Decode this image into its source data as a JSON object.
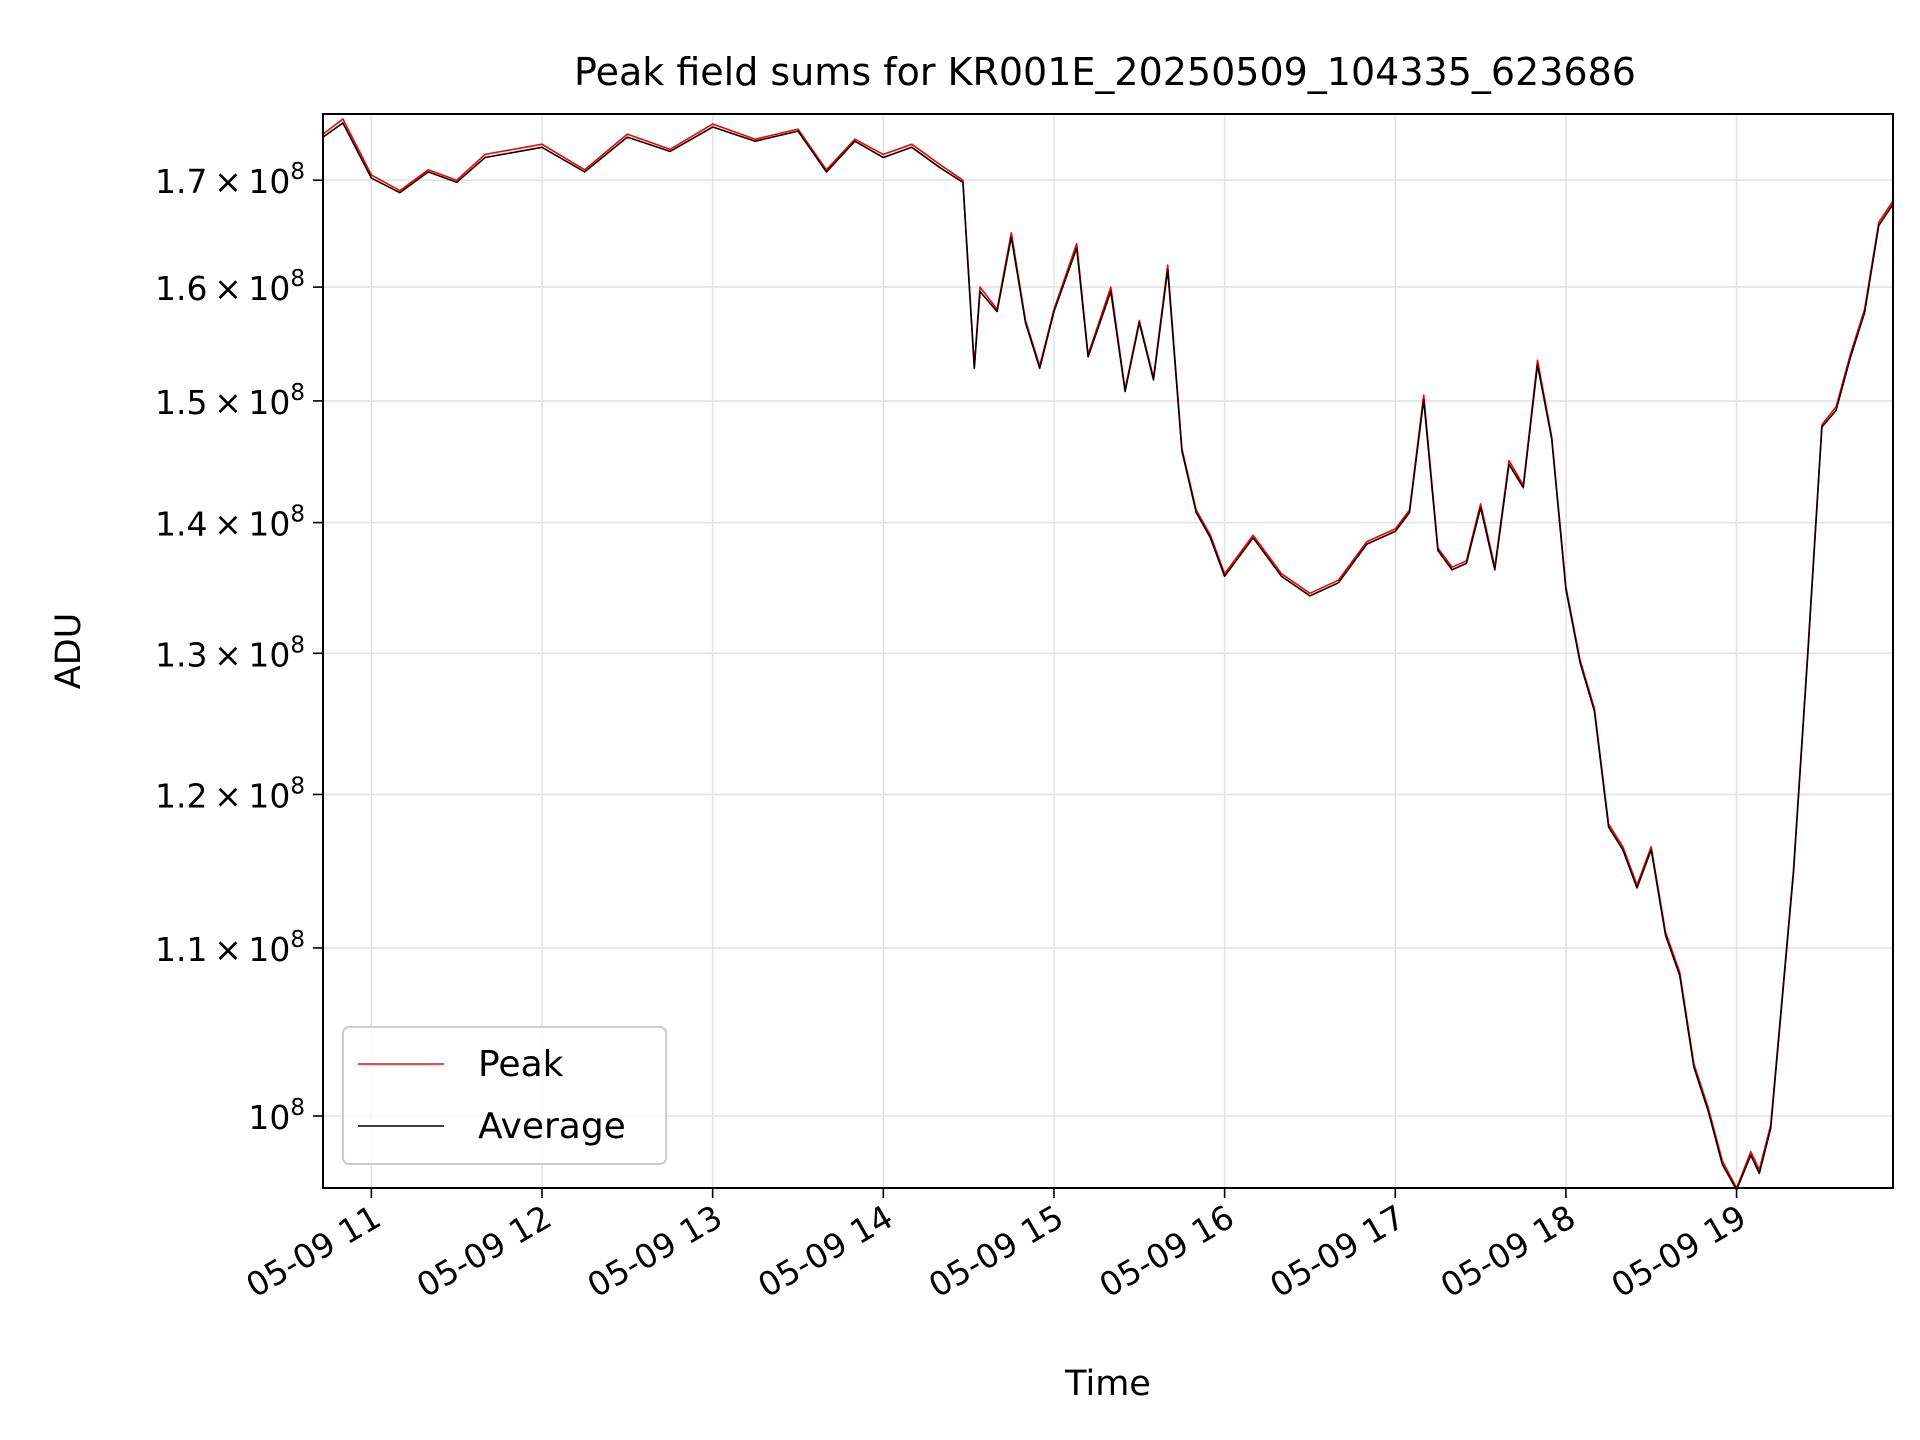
{
  "chart_data": {
    "type": "line",
    "title": "Peak field sums for KR001E_20250509_104335_623686",
    "xlabel": "Time",
    "ylabel": "ADU",
    "y_scale": "log",
    "ylim": [
      96000000,
      176500000
    ],
    "xlim": [
      "05-09 10:43",
      "05-09 19:55"
    ],
    "grid": true,
    "legend_position": "lower-left",
    "x_ticks": [
      "05-09 11",
      "05-09 12",
      "05-09 13",
      "05-09 14",
      "05-09 15",
      "05-09 16",
      "05-09 17",
      "05-09 18",
      "05-09 19"
    ],
    "y_ticks": [
      {
        "value": 100000000,
        "mantissa": "",
        "exponent": "8"
      },
      {
        "value": 110000000,
        "mantissa": "1.1",
        "exponent": "8"
      },
      {
        "value": 120000000,
        "mantissa": "1.2",
        "exponent": "8"
      },
      {
        "value": 130000000,
        "mantissa": "1.3",
        "exponent": "8"
      },
      {
        "value": 140000000,
        "mantissa": "1.4",
        "exponent": "8"
      },
      {
        "value": 150000000,
        "mantissa": "1.5",
        "exponent": "8"
      },
      {
        "value": 160000000,
        "mantissa": "1.6",
        "exponent": "8"
      },
      {
        "value": 170000000,
        "mantissa": "1.7",
        "exponent": "8"
      }
    ],
    "y_tick_base": "10",
    "y_tick_times": "×",
    "x": [
      "05-09 10:43",
      "05-09 10:50",
      "05-09 11:00",
      "05-09 11:10",
      "05-09 11:20",
      "05-09 11:30",
      "05-09 11:40",
      "05-09 12:00",
      "05-09 12:15",
      "05-09 12:30",
      "05-09 12:45",
      "05-09 13:00",
      "05-09 13:15",
      "05-09 13:30",
      "05-09 13:40",
      "05-09 13:50",
      "05-09 14:00",
      "05-09 14:10",
      "05-09 14:20",
      "05-09 14:28",
      "05-09 14:32",
      "05-09 14:34",
      "05-09 14:40",
      "05-09 14:45",
      "05-09 14:50",
      "05-09 14:55",
      "05-09 15:00",
      "05-09 15:08",
      "05-09 15:12",
      "05-09 15:20",
      "05-09 15:25",
      "05-09 15:30",
      "05-09 15:35",
      "05-09 15:40",
      "05-09 15:45",
      "05-09 15:50",
      "05-09 15:55",
      "05-09 16:00",
      "05-09 16:10",
      "05-09 16:20",
      "05-09 16:30",
      "05-09 16:40",
      "05-09 16:50",
      "05-09 17:00",
      "05-09 17:05",
      "05-09 17:10",
      "05-09 17:15",
      "05-09 17:20",
      "05-09 17:25",
      "05-09 17:30",
      "05-09 17:35",
      "05-09 17:40",
      "05-09 17:45",
      "05-09 17:50",
      "05-09 17:55",
      "05-09 18:00",
      "05-09 18:05",
      "05-09 18:10",
      "05-09 18:15",
      "05-09 18:20",
      "05-09 18:25",
      "05-09 18:30",
      "05-09 18:35",
      "05-09 18:40",
      "05-09 18:45",
      "05-09 18:50",
      "05-09 18:55",
      "05-09 19:00",
      "05-09 19:05",
      "05-09 19:08",
      "05-09 19:12",
      "05-09 19:15",
      "05-09 19:20",
      "05-09 19:25",
      "05-09 19:30",
      "05-09 19:35",
      "05-09 19:40",
      "05-09 19:45",
      "05-09 19:50",
      "05-09 19:55"
    ],
    "series": [
      {
        "name": "Peak",
        "color": "#ff0000",
        "values": [
          174500000,
          176000000,
          170500000,
          169000000,
          171000000,
          170000000,
          172500000,
          173500000,
          171000000,
          174500000,
          173000000,
          175500000,
          174000000,
          175000000,
          171000000,
          174000000,
          172500000,
          173500000,
          171500000,
          170000000,
          153000000,
          160000000,
          158000000,
          165000000,
          157000000,
          153000000,
          158000000,
          164000000,
          154000000,
          160000000,
          151000000,
          157000000,
          152000000,
          162000000,
          146000000,
          141000000,
          139000000,
          136000000,
          139000000,
          136000000,
          134500000,
          135500000,
          138500000,
          139500000,
          141000000,
          150500000,
          138000000,
          136500000,
          137000000,
          141500000,
          136500000,
          145000000,
          143000000,
          153500000,
          147000000,
          135000000,
          129500000,
          126000000,
          118000000,
          116500000,
          114000000,
          116500000,
          111000000,
          108500000,
          103000000,
          100500000,
          97500000,
          96000000,
          98000000,
          97000000,
          99500000,
          105000000,
          115000000,
          130000000,
          148000000,
          149500000,
          154000000,
          158000000,
          166000000,
          168000000
        ]
      },
      {
        "name": "Average",
        "color": "#000000",
        "values": [
          174200000,
          175600000,
          170200000,
          168800000,
          170800000,
          169800000,
          172200000,
          173200000,
          170800000,
          174200000,
          172800000,
          175200000,
          173800000,
          174800000,
          170800000,
          173800000,
          172200000,
          173200000,
          171200000,
          169800000,
          152800000,
          159600000,
          157800000,
          164600000,
          156800000,
          152800000,
          157800000,
          163600000,
          153800000,
          159600000,
          150800000,
          156800000,
          151800000,
          161600000,
          145800000,
          140800000,
          138800000,
          135800000,
          138800000,
          135800000,
          134300000,
          135300000,
          138300000,
          139300000,
          140800000,
          150100000,
          137800000,
          136300000,
          136800000,
          141200000,
          136300000,
          144700000,
          142800000,
          153100000,
          146800000,
          134800000,
          129300000,
          125800000,
          117800000,
          116300000,
          113800000,
          116300000,
          110800000,
          108300000,
          102800000,
          100300000,
          97300000,
          95900000,
          97800000,
          96800000,
          99300000,
          104800000,
          114800000,
          129800000,
          147800000,
          149200000,
          153700000,
          157700000,
          165700000,
          167700000
        ]
      }
    ]
  }
}
